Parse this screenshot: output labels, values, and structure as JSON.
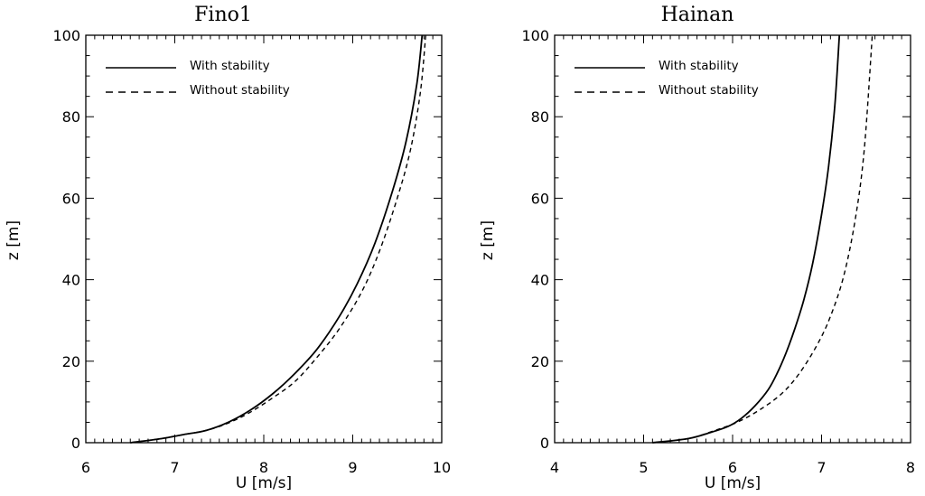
{
  "chart_data": [
    {
      "type": "line",
      "title": "Fino1",
      "xlabel": "U [m/s]",
      "ylabel": "z [m]",
      "xlim": [
        6,
        10
      ],
      "ylim": [
        0,
        100
      ],
      "xticks": [
        6,
        7,
        8,
        9,
        10
      ],
      "yticks": [
        0,
        20,
        40,
        60,
        80,
        100
      ],
      "grid": false,
      "legend": "top-left",
      "series": [
        {
          "name": "With stability",
          "style": "solid",
          "x": [
            6.5,
            6.85,
            7.1,
            7.35,
            7.6,
            7.85,
            8.1,
            8.35,
            8.6,
            8.85,
            9.05,
            9.25,
            9.45,
            9.6,
            9.72,
            9.78
          ],
          "y": [
            0,
            1,
            2,
            3,
            5,
            8,
            12,
            17,
            23,
            31,
            39,
            49,
            62,
            74,
            88,
            100
          ]
        },
        {
          "name": "Without stability",
          "style": "dashed",
          "x": [
            6.5,
            6.85,
            7.1,
            7.35,
            7.6,
            7.85,
            8.1,
            8.35,
            8.6,
            8.85,
            9.1,
            9.3,
            9.5,
            9.65,
            9.76,
            9.82
          ],
          "y": [
            0,
            1,
            2,
            3,
            4.8,
            7.5,
            11,
            15,
            21,
            28,
            37,
            47,
            60,
            72,
            86,
            100
          ]
        }
      ]
    },
    {
      "type": "line",
      "title": "Hainan",
      "xlabel": "U [m/s]",
      "ylabel": "z [m]",
      "xlim": [
        4,
        8
      ],
      "ylim": [
        0,
        100
      ],
      "xticks": [
        4,
        5,
        6,
        7,
        8
      ],
      "yticks": [
        0,
        20,
        40,
        60,
        80,
        100
      ],
      "grid": false,
      "legend": "top-left",
      "series": [
        {
          "name": "With stability",
          "style": "solid",
          "x": [
            5.1,
            5.5,
            5.75,
            5.95,
            6.1,
            6.25,
            6.4,
            6.5,
            6.6,
            6.7,
            6.8,
            6.9,
            7.0,
            7.08,
            7.15,
            7.2
          ],
          "y": [
            0,
            1,
            2.5,
            4,
            6,
            9,
            13,
            17,
            22,
            28,
            35,
            44,
            56,
            68,
            83,
            100
          ]
        },
        {
          "name": "Without stability",
          "style": "dashed",
          "x": [
            5.1,
            5.5,
            5.8,
            6.05,
            6.3,
            6.55,
            6.75,
            6.95,
            7.1,
            7.25,
            7.38,
            7.48,
            7.57
          ],
          "y": [
            0,
            1,
            3,
            5,
            8,
            12,
            17,
            24,
            31,
            41,
            55,
            72,
            100
          ]
        }
      ]
    }
  ]
}
